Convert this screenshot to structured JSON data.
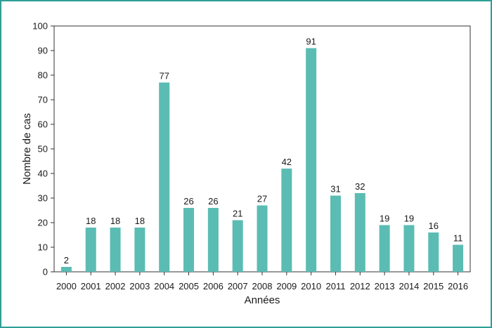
{
  "chart_data": {
    "type": "bar",
    "categories": [
      "2000",
      "2001",
      "2002",
      "2003",
      "2004",
      "2005",
      "2006",
      "2007",
      "2008",
      "2009",
      "2010",
      "2011",
      "2012",
      "2013",
      "2014",
      "2015",
      "2016"
    ],
    "values": [
      2,
      18,
      18,
      18,
      77,
      26,
      26,
      21,
      27,
      42,
      91,
      31,
      32,
      19,
      19,
      16,
      11
    ],
    "data_labels": [
      "2",
      "18",
      "18",
      "18",
      "77",
      "26",
      "26",
      "21",
      "27",
      "42",
      "91",
      "31",
      "32",
      "19",
      "19",
      "16",
      "11"
    ],
    "xlabel": "Années",
    "ylabel": "Nombre de cas",
    "ylim": [
      0,
      100
    ],
    "yticks": [
      0,
      10,
      20,
      30,
      40,
      50,
      60,
      70,
      80,
      90,
      100
    ],
    "grid": false,
    "bar_color": "#5bbcb4",
    "frame_color": "#2e9e96"
  }
}
